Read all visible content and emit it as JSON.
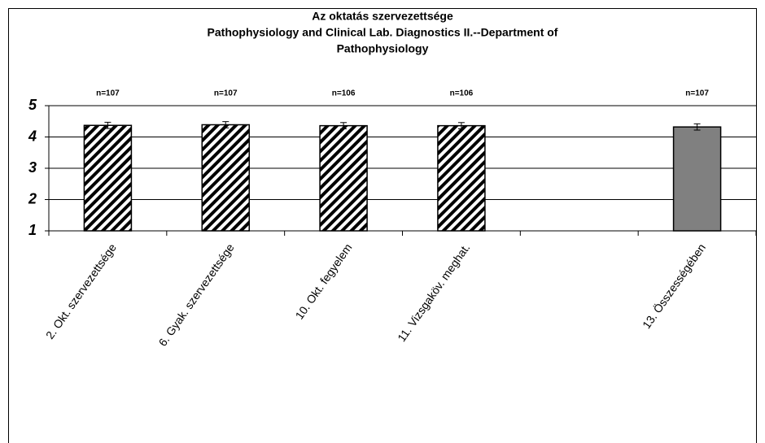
{
  "chart_data": {
    "type": "bar",
    "title": "Az oktatás szervezettsége",
    "subtitle": [
      "Pathophysiology and Clinical Lab. Diagnostics II.--Department of",
      "Pathophysiology"
    ],
    "categories": [
      "2. Okt. szervezettsége",
      "6. Gyak. szervezettsége",
      "10. Okt. fegyelem",
      "11. Vizsgaköv. meghat.",
      null,
      "13. Összességében"
    ],
    "values": [
      4.37,
      4.39,
      4.36,
      4.36,
      null,
      4.32
    ],
    "errors": [
      0.1,
      0.1,
      0.1,
      0.1,
      null,
      0.1
    ],
    "annotations": [
      "n=107",
      "n=107",
      "n=106",
      "n=106",
      null,
      "n=107"
    ],
    "bar_fills": [
      "hatched",
      "hatched",
      "hatched",
      "hatched",
      null,
      "#808080"
    ],
    "ylim": [
      1,
      5
    ],
    "yticks": [
      1,
      2,
      3,
      4,
      5
    ],
    "grid": true
  }
}
